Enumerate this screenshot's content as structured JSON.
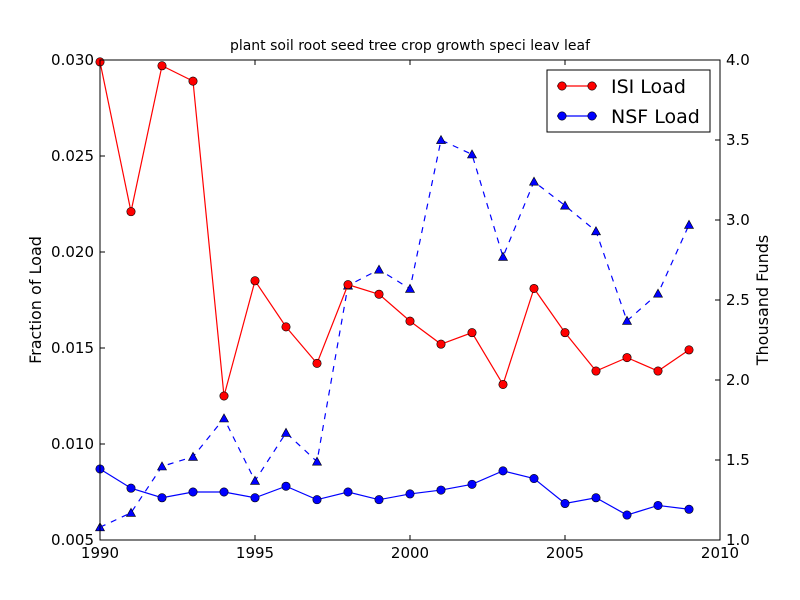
{
  "chart_data": {
    "type": "line",
    "title": "plant soil root seed tree crop growth speci leav leaf",
    "xlabel": "",
    "ylabel": "Fraction of Load",
    "y2label": "Thousand Funds",
    "xlim": [
      1990,
      2010
    ],
    "ylim": [
      0.005,
      0.03
    ],
    "y2lim": [
      1.0,
      4.0
    ],
    "xticks": [
      1990,
      1995,
      2000,
      2005,
      2010
    ],
    "xtick_labels": [
      "1990",
      "1995",
      "2000",
      "2005",
      "2010"
    ],
    "yticks": [
      0.005,
      0.01,
      0.015,
      0.02,
      0.025,
      0.03
    ],
    "ytick_labels": [
      "0.005",
      "0.010",
      "0.015",
      "0.020",
      "0.025",
      "0.030"
    ],
    "y2ticks": [
      1.0,
      1.5,
      2.0,
      2.5,
      3.0,
      3.5,
      4.0
    ],
    "y2tick_labels": [
      "1.0",
      "1.5",
      "2.0",
      "2.5",
      "3.0",
      "3.5",
      "4.0"
    ],
    "grid": false,
    "legend_position": "top-right",
    "x": [
      1990,
      1991,
      1992,
      1993,
      1994,
      1995,
      1996,
      1997,
      1998,
      1999,
      2000,
      2001,
      2002,
      2003,
      2004,
      2005,
      2006,
      2007,
      2008,
      2009
    ],
    "series": [
      {
        "name": "ISI Load",
        "axis": "left",
        "color": "#ff0000",
        "marker": "circle",
        "linestyle": "solid",
        "in_legend": true,
        "values": [
          0.0299,
          0.0221,
          0.0297,
          0.0289,
          0.0125,
          0.0185,
          0.0161,
          0.0142,
          0.0183,
          0.0178,
          0.0164,
          0.0152,
          0.0158,
          0.0131,
          0.0181,
          0.0158,
          0.0138,
          0.0145,
          0.0138,
          0.0149
        ]
      },
      {
        "name": "NSF Load",
        "axis": "left",
        "color": "#0000ff",
        "marker": "circle",
        "linestyle": "solid",
        "in_legend": true,
        "values": [
          0.0087,
          0.0077,
          0.0072,
          0.0075,
          0.0075,
          0.0072,
          0.0078,
          0.0071,
          0.0075,
          0.0071,
          0.0074,
          0.0076,
          0.0079,
          0.0086,
          0.0082,
          0.0069,
          0.0072,
          0.0063,
          0.0068,
          0.0066
        ]
      },
      {
        "name": "Thousand Funds",
        "axis": "right",
        "color": "#0000ff",
        "marker": "triangle",
        "linestyle": "dashed",
        "in_legend": false,
        "values": [
          1.08,
          1.17,
          1.46,
          1.52,
          1.76,
          1.37,
          1.67,
          1.49,
          2.59,
          2.69,
          2.57,
          3.5,
          3.41,
          2.77,
          3.24,
          3.09,
          2.93,
          2.37,
          2.54,
          2.97
        ]
      }
    ]
  }
}
